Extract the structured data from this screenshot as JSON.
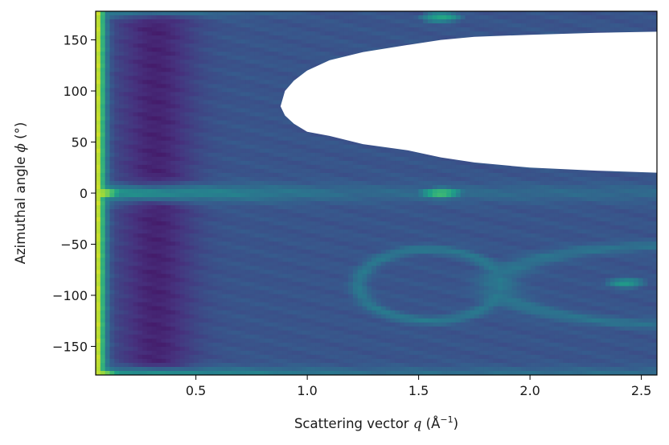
{
  "chart_data": {
    "type": "heatmap",
    "title": "",
    "xlabel_prefix": "Scattering vector",
    "xlabel_symbol": "q",
    "xlabel_unit_open": "(Å",
    "xlabel_unit_sup": "−1",
    "xlabel_unit_close": ")",
    "ylabel_prefix": "Azimuthal angle",
    "ylabel_symbol": "ϕ",
    "ylabel_unit": "(°)",
    "xlim": [
      0.05,
      2.57
    ],
    "ylim": [
      -178,
      178
    ],
    "xticks": [
      {
        "value": 0.5,
        "label": "0.5"
      },
      {
        "value": 1.0,
        "label": "1.0"
      },
      {
        "value": 1.5,
        "label": "1.5"
      },
      {
        "value": 2.0,
        "label": "2.0"
      },
      {
        "value": 2.5,
        "label": "2.5"
      }
    ],
    "yticks": [
      {
        "value": 150,
        "label": "150"
      },
      {
        "value": 100,
        "label": "100"
      },
      {
        "value": 50,
        "label": "50"
      },
      {
        "value": 0,
        "label": "0"
      },
      {
        "value": -50,
        "label": "−50"
      },
      {
        "value": -100,
        "label": "−100"
      },
      {
        "value": -150,
        "label": "−150"
      }
    ],
    "colormap": "viridis",
    "colormap_stops": [
      "#440154",
      "#46327e",
      "#365c8d",
      "#277f8e",
      "#1fa187",
      "#4ac16d",
      "#a0da39",
      "#fde725"
    ],
    "background_level": 0.26,
    "low_intensity_band": {
      "q_center": 0.32,
      "q_width": 0.12,
      "level": 0.1
    },
    "bright_rows": [
      {
        "phi": 0,
        "level": 0.52,
        "width_deg": 6
      },
      {
        "phi": -178,
        "level": 0.55,
        "width_deg": 5
      },
      {
        "phi": 178,
        "level": 0.42,
        "width_deg": 4
      }
    ],
    "bright_spots": [
      {
        "q": 0.06,
        "phi": 0,
        "level": 0.95
      },
      {
        "q": 0.06,
        "phi": -178,
        "level": 0.95
      },
      {
        "q": 1.6,
        "phi": 0,
        "level": 0.72
      },
      {
        "q": 1.6,
        "phi": 172,
        "level": 0.6
      },
      {
        "q": 2.43,
        "phi": -88,
        "level": 0.55
      }
    ],
    "ring_features": [
      {
        "q_center": 1.55,
        "phi_center": -90,
        "q_radius": 0.32,
        "phi_radius": 35,
        "level": 0.4
      },
      {
        "q_center": 2.6,
        "phi_center": -90,
        "q_radius": 0.75,
        "phi_radius": 38,
        "level": 0.38
      }
    ],
    "masked_region": {
      "description": "no data",
      "boundary": [
        [
          0.88,
          85
        ],
        [
          0.9,
          100
        ],
        [
          0.94,
          110
        ],
        [
          1.0,
          120
        ],
        [
          1.1,
          130
        ],
        [
          1.25,
          138
        ],
        [
          1.45,
          145
        ],
        [
          1.6,
          150
        ],
        [
          1.75,
          153
        ],
        [
          2.0,
          155
        ],
        [
          2.3,
          157
        ],
        [
          2.57,
          158
        ],
        [
          2.57,
          20
        ],
        [
          2.3,
          22
        ],
        [
          2.0,
          25
        ],
        [
          1.75,
          30
        ],
        [
          1.6,
          35
        ],
        [
          1.45,
          42
        ],
        [
          1.25,
          48
        ],
        [
          1.1,
          56
        ],
        [
          1.0,
          60
        ],
        [
          0.94,
          68
        ],
        [
          0.9,
          76
        ]
      ]
    }
  }
}
